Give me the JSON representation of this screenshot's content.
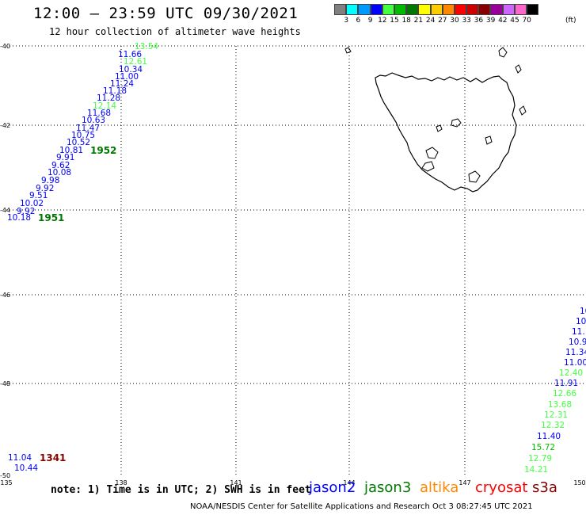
{
  "header": {
    "title": "12:00 — 23:59 UTC 09/30/2021",
    "subtitle": "12 hour collection of altimeter wave heights"
  },
  "color_scale": {
    "unit": "(ft)",
    "labels": [
      "3",
      "6",
      "9",
      "12",
      "15",
      "18",
      "21",
      "24",
      "27",
      "30",
      "33",
      "36",
      "39",
      "42",
      "45",
      "70"
    ],
    "colors": [
      "#808080",
      "#00ffff",
      "#0099ff",
      "#0000ff",
      "#44ff44",
      "#00bb00",
      "#007700",
      "#ffff00",
      "#ffcc00",
      "#ff8800",
      "#ff0000",
      "#cc0000",
      "#880000",
      "#990099",
      "#cc66ff",
      "#ff66cc",
      "#000000"
    ]
  },
  "map": {
    "lat_labels": [
      "-40",
      "-42",
      "-44",
      "-46",
      "-48",
      "-50"
    ],
    "lon_labels": [
      "135",
      "138",
      "141",
      "144",
      "147",
      "150"
    ],
    "land_outline_color": "#000000"
  },
  "observations": [
    {
      "text": "13.54",
      "color": "#44ff44"
    },
    {
      "text": "11.66",
      "color": "#0000ff"
    },
    {
      "text": "12.61",
      "color": "#44ff44"
    },
    {
      "text": "10.34",
      "color": "#0000ff"
    },
    {
      "text": "11.00",
      "color": "#0000ff"
    },
    {
      "text": "11.24",
      "color": "#0000ff"
    },
    {
      "text": "11.18",
      "color": "#0000ff"
    },
    {
      "text": "11.28",
      "color": "#0000ff"
    },
    {
      "text": "12.14",
      "color": "#44ff44"
    },
    {
      "text": "11.68",
      "color": "#0000ff"
    },
    {
      "text": "10.63",
      "color": "#0000ff"
    },
    {
      "text": "11.47",
      "color": "#0000ff"
    },
    {
      "text": "10.75",
      "color": "#0000ff"
    },
    {
      "text": "10.52",
      "color": "#0000ff"
    },
    {
      "text": "10.81",
      "color": "#0000ff"
    },
    {
      "text": "9.91",
      "color": "#0000ff"
    },
    {
      "text": "9.62",
      "color": "#0000ff"
    },
    {
      "text": "10.08",
      "color": "#0000ff"
    },
    {
      "text": "9.98",
      "color": "#0000ff"
    },
    {
      "text": "9.92",
      "color": "#0000ff"
    },
    {
      "text": "9.51",
      "color": "#0000ff"
    },
    {
      "text": "10.02",
      "color": "#0000ff"
    },
    {
      "text": "9.92",
      "color": "#0000ff"
    },
    {
      "text": "10.18",
      "color": "#0000ff"
    },
    {
      "text": "11.04",
      "color": "#0000ff"
    },
    {
      "text": "10.44",
      "color": "#0000ff"
    },
    {
      "text": "10",
      "color": "#0000ff"
    },
    {
      "text": "10",
      "color": "#0000ff"
    },
    {
      "text": "11.",
      "color": "#0000ff"
    },
    {
      "text": "10.9",
      "color": "#0000ff"
    },
    {
      "text": "11.34",
      "color": "#0000ff"
    },
    {
      "text": "11.00",
      "color": "#0000ff"
    },
    {
      "text": "12.40",
      "color": "#44ff44"
    },
    {
      "text": "11.91",
      "color": "#0000ff"
    },
    {
      "text": "12.66",
      "color": "#44ff44"
    },
    {
      "text": "13.68",
      "color": "#44ff44"
    },
    {
      "text": "12.31",
      "color": "#44ff44"
    },
    {
      "text": "12.32",
      "color": "#44ff44"
    },
    {
      "text": "11.40",
      "color": "#0000ff"
    },
    {
      "text": "15.72",
      "color": "#00bb00"
    },
    {
      "text": "12.79",
      "color": "#44ff44"
    },
    {
      "text": "14.21",
      "color": "#44ff44"
    }
  ],
  "pass_times": [
    {
      "text": "1952",
      "color": "#007700"
    },
    {
      "text": "1951",
      "color": "#007700"
    },
    {
      "text": "1341",
      "color": "#880000"
    }
  ],
  "footer": {
    "note": "note: 1) Time is in UTC; 2) SWH is in feet",
    "credit": "NOAA/NESDIS Center for Satellite Applications and Research   Oct  3 08:27:45 UTC 2021",
    "satellites": [
      {
        "name": "jason2",
        "color": "#0000ff"
      },
      {
        "name": "jason3",
        "color": "#007700"
      },
      {
        "name": "altika",
        "color": "#ff8800"
      },
      {
        "name": "cryosat",
        "color": "#ff0000"
      },
      {
        "name": "s3a",
        "color": "#880000"
      }
    ]
  }
}
